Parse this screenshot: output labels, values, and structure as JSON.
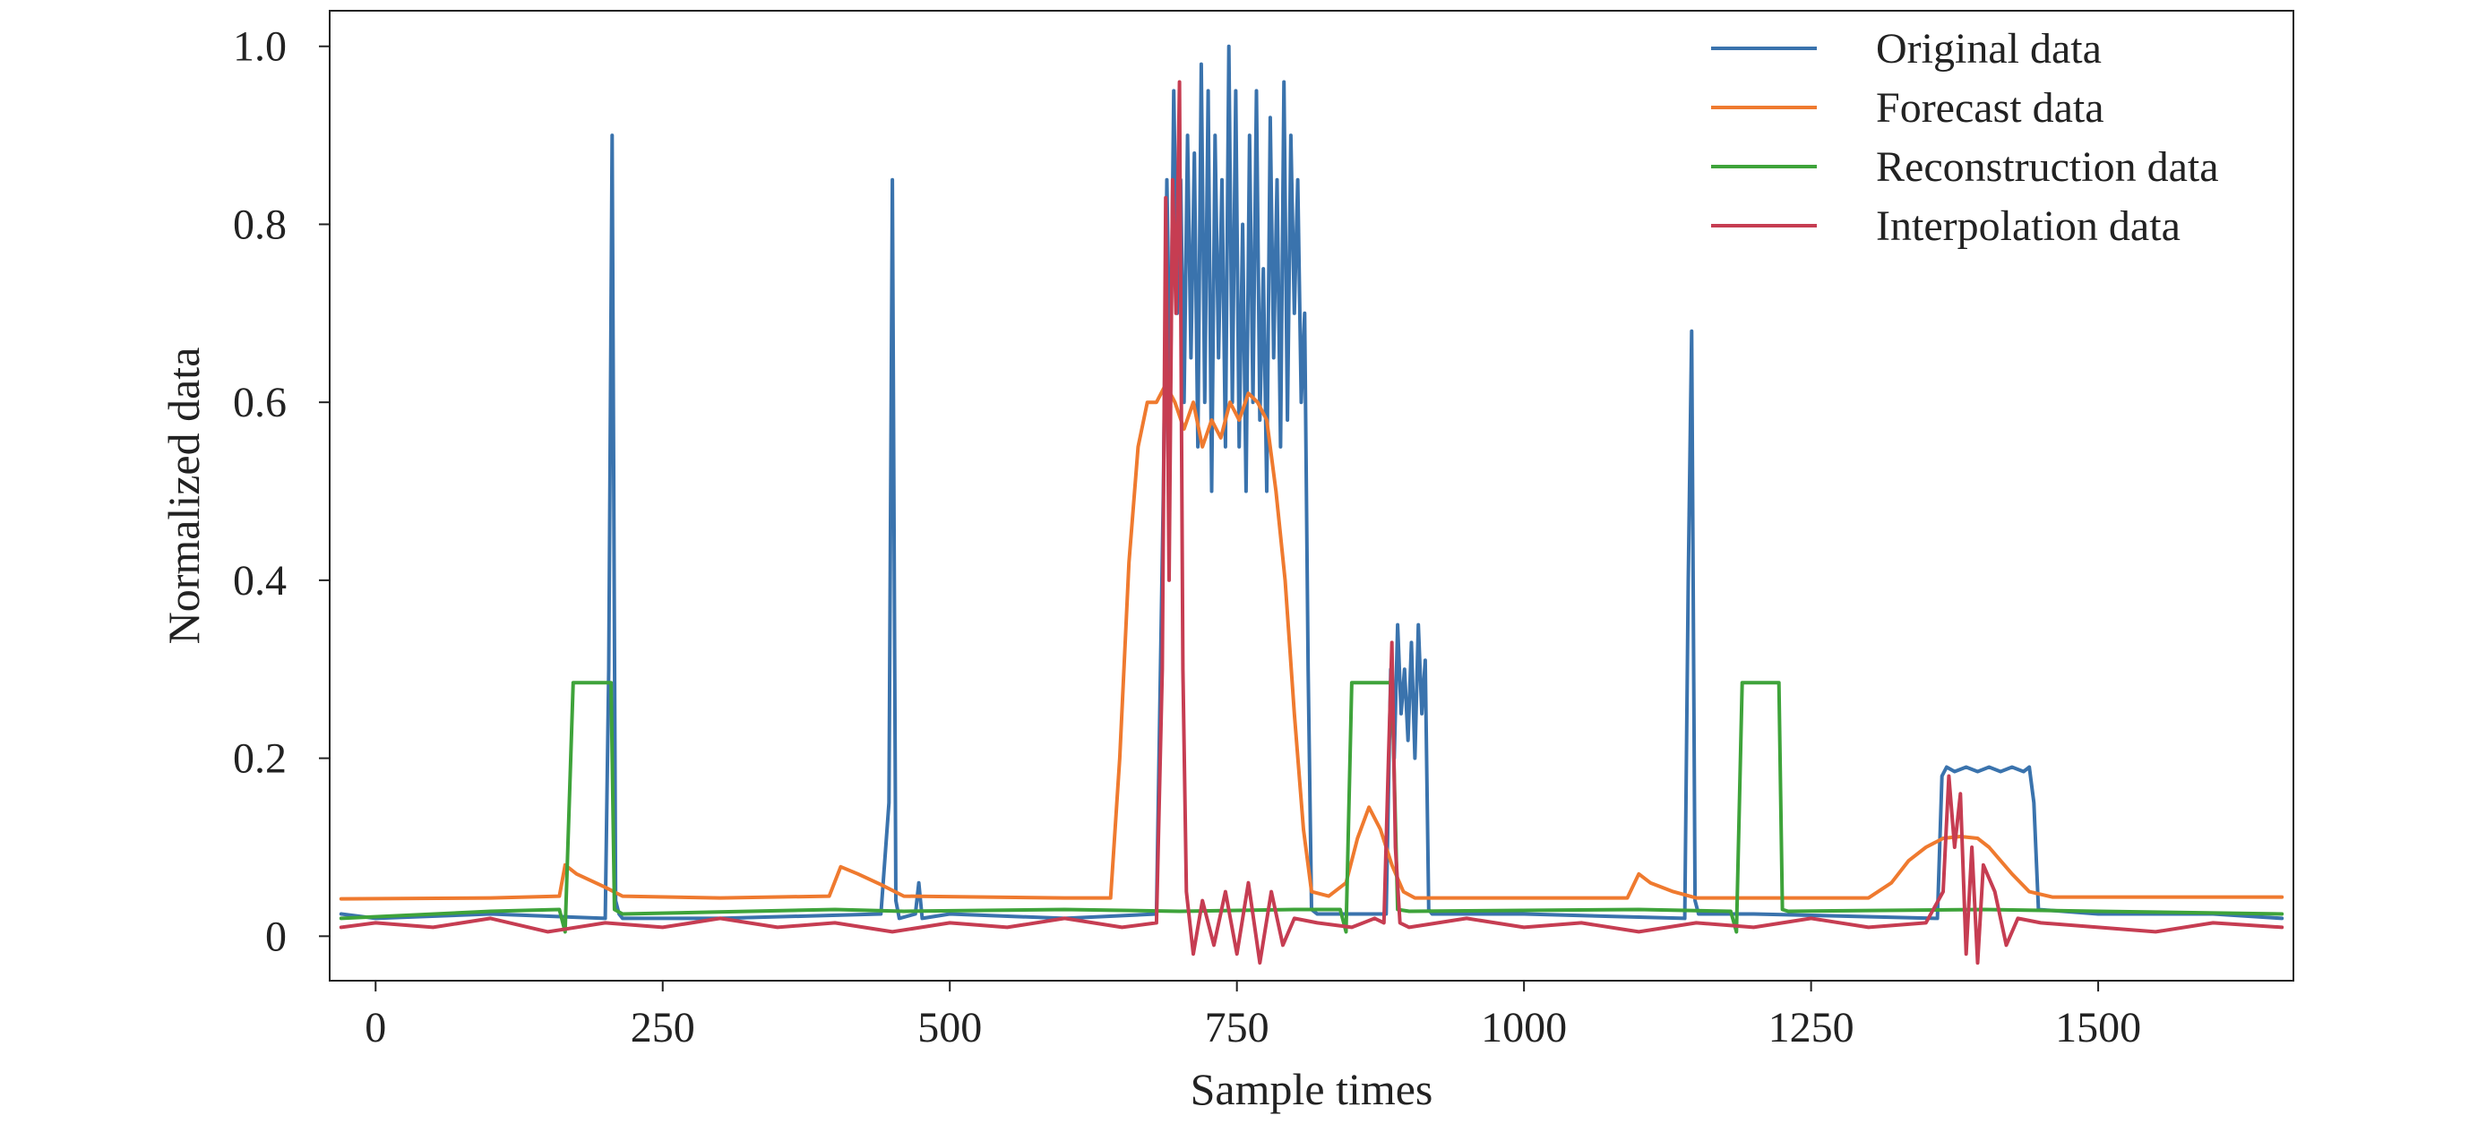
{
  "chart_data": {
    "type": "line",
    "title": "",
    "xlabel": "Sample times",
    "ylabel": "Normalized data",
    "xlim": [
      -40,
      1670
    ],
    "ylim": [
      -0.05,
      1.04
    ],
    "xticks": [
      0,
      250,
      500,
      750,
      1000,
      1250,
      1500
    ],
    "yticks": [
      0,
      0.2,
      0.4,
      0.6,
      0.8,
      1.0
    ],
    "ytick_labels": [
      "0",
      "0.2",
      "0.4",
      "0.6",
      "0.8",
      "1.0"
    ],
    "grid": false,
    "legend_position": "top-right",
    "series": [
      {
        "name": "Original data",
        "color": "#3a73ad",
        "x": [
          -30,
          0,
          100,
          200,
          203,
          206,
          209,
          212,
          215,
          300,
          440,
          447,
          450,
          453,
          456,
          470,
          473,
          476,
          500,
          600,
          680,
          686,
          689,
          692,
          695,
          698,
          701,
          704,
          707,
          710,
          713,
          716,
          719,
          722,
          725,
          728,
          731,
          734,
          737,
          740,
          743,
          746,
          749,
          752,
          755,
          758,
          761,
          764,
          767,
          770,
          773,
          776,
          779,
          782,
          785,
          788,
          791,
          794,
          797,
          800,
          803,
          806,
          809,
          812,
          815,
          820,
          880,
          884,
          887,
          890,
          893,
          896,
          899,
          902,
          905,
          908,
          911,
          914,
          917,
          920,
          1000,
          1140,
          1143,
          1146,
          1149,
          1152,
          1200,
          1360,
          1364,
          1368,
          1375,
          1385,
          1395,
          1405,
          1415,
          1425,
          1435,
          1440,
          1444,
          1448,
          1500,
          1600,
          1660
        ],
        "values": [
          0.025,
          0.02,
          0.025,
          0.02,
          0.3,
          0.9,
          0.04,
          0.025,
          0.02,
          0.02,
          0.025,
          0.15,
          0.85,
          0.04,
          0.02,
          0.025,
          0.06,
          0.02,
          0.025,
          0.02,
          0.025,
          0.5,
          0.85,
          0.6,
          0.95,
          0.7,
          0.85,
          0.6,
          0.9,
          0.65,
          0.88,
          0.55,
          0.98,
          0.6,
          0.95,
          0.5,
          0.9,
          0.65,
          0.85,
          0.55,
          1.0,
          0.6,
          0.95,
          0.55,
          0.8,
          0.5,
          0.9,
          0.6,
          0.95,
          0.58,
          0.75,
          0.5,
          0.92,
          0.65,
          0.85,
          0.55,
          0.96,
          0.58,
          0.9,
          0.7,
          0.85,
          0.6,
          0.7,
          0.3,
          0.03,
          0.025,
          0.025,
          0.3,
          0.2,
          0.35,
          0.25,
          0.3,
          0.22,
          0.33,
          0.2,
          0.35,
          0.25,
          0.31,
          0.03,
          0.025,
          0.025,
          0.02,
          0.4,
          0.68,
          0.04,
          0.025,
          0.025,
          0.02,
          0.18,
          0.19,
          0.185,
          0.19,
          0.185,
          0.19,
          0.185,
          0.19,
          0.185,
          0.19,
          0.15,
          0.03,
          0.025,
          0.025,
          0.02
        ]
      },
      {
        "name": "Forecast data",
        "color": "#ef7a2f",
        "x": [
          -30,
          100,
          160,
          165,
          175,
          200,
          215,
          300,
          395,
          405,
          420,
          440,
          460,
          600,
          640,
          648,
          656,
          664,
          672,
          680,
          688,
          696,
          704,
          712,
          720,
          728,
          736,
          744,
          752,
          760,
          768,
          776,
          784,
          792,
          800,
          808,
          815,
          830,
          845,
          855,
          865,
          875,
          885,
          895,
          905,
          1090,
          1100,
          1110,
          1130,
          1150,
          1300,
          1320,
          1335,
          1350,
          1365,
          1380,
          1395,
          1405,
          1415,
          1425,
          1440,
          1460,
          1660
        ],
        "values": [
          0.042,
          0.043,
          0.045,
          0.08,
          0.07,
          0.055,
          0.045,
          0.043,
          0.045,
          0.078,
          0.07,
          0.058,
          0.045,
          0.043,
          0.043,
          0.2,
          0.42,
          0.55,
          0.6,
          0.6,
          0.62,
          0.6,
          0.57,
          0.6,
          0.55,
          0.58,
          0.56,
          0.6,
          0.58,
          0.61,
          0.6,
          0.58,
          0.5,
          0.4,
          0.25,
          0.12,
          0.05,
          0.045,
          0.06,
          0.11,
          0.145,
          0.12,
          0.08,
          0.05,
          0.043,
          0.043,
          0.07,
          0.06,
          0.05,
          0.043,
          0.043,
          0.06,
          0.085,
          0.1,
          0.11,
          0.112,
          0.11,
          0.1,
          0.085,
          0.07,
          0.05,
          0.044,
          0.044
        ]
      },
      {
        "name": "Reconstruction data",
        "color": "#3ea33a",
        "x": [
          -30,
          100,
          160,
          165,
          172,
          205,
          208,
          215,
          400,
          460,
          600,
          700,
          800,
          840,
          845,
          850,
          855,
          885,
          890,
          900,
          1100,
          1180,
          1185,
          1190,
          1195,
          1222,
          1225,
          1230,
          1400,
          1500,
          1660
        ],
        "values": [
          0.02,
          0.028,
          0.03,
          0.005,
          0.285,
          0.285,
          0.03,
          0.025,
          0.03,
          0.028,
          0.03,
          0.028,
          0.03,
          0.03,
          0.005,
          0.285,
          0.285,
          0.285,
          0.03,
          0.028,
          0.03,
          0.028,
          0.005,
          0.285,
          0.285,
          0.285,
          0.03,
          0.028,
          0.03,
          0.028,
          0.025
        ]
      },
      {
        "name": "Interpolation data",
        "color": "#c63d52",
        "x": [
          -30,
          0,
          50,
          100,
          150,
          200,
          250,
          300,
          350,
          400,
          450,
          500,
          550,
          600,
          650,
          680,
          685,
          688,
          691,
          694,
          697,
          700,
          703,
          706,
          712,
          720,
          730,
          740,
          750,
          760,
          770,
          780,
          790,
          800,
          820,
          850,
          870,
          878,
          882,
          885,
          888,
          892,
          900,
          950,
          1000,
          1050,
          1100,
          1150,
          1200,
          1250,
          1300,
          1350,
          1365,
          1370,
          1375,
          1380,
          1385,
          1390,
          1395,
          1400,
          1410,
          1420,
          1430,
          1450,
          1500,
          1550,
          1600,
          1660
        ],
        "values": [
          0.01,
          0.015,
          0.01,
          0.02,
          0.005,
          0.015,
          0.01,
          0.02,
          0.01,
          0.015,
          0.005,
          0.015,
          0.01,
          0.02,
          0.01,
          0.015,
          0.3,
          0.83,
          0.4,
          0.85,
          0.7,
          0.96,
          0.3,
          0.05,
          -0.02,
          0.04,
          -0.01,
          0.05,
          -0.02,
          0.06,
          -0.03,
          0.05,
          -0.01,
          0.02,
          0.015,
          0.01,
          0.02,
          0.015,
          0.2,
          0.33,
          0.1,
          0.015,
          0.01,
          0.02,
          0.01,
          0.015,
          0.005,
          0.015,
          0.01,
          0.02,
          0.01,
          0.015,
          0.05,
          0.18,
          0.1,
          0.16,
          -0.02,
          0.1,
          -0.03,
          0.08,
          0.05,
          -0.01,
          0.02,
          0.015,
          0.01,
          0.005,
          0.015,
          0.01
        ]
      }
    ]
  },
  "legend": {
    "items": [
      {
        "label": "Original data",
        "color": "#3a73ad"
      },
      {
        "label": "Forecast data",
        "color": "#ef7a2f"
      },
      {
        "label": "Reconstruction data",
        "color": "#3ea33a"
      },
      {
        "label": "Interpolation data",
        "color": "#c63d52"
      }
    ]
  }
}
